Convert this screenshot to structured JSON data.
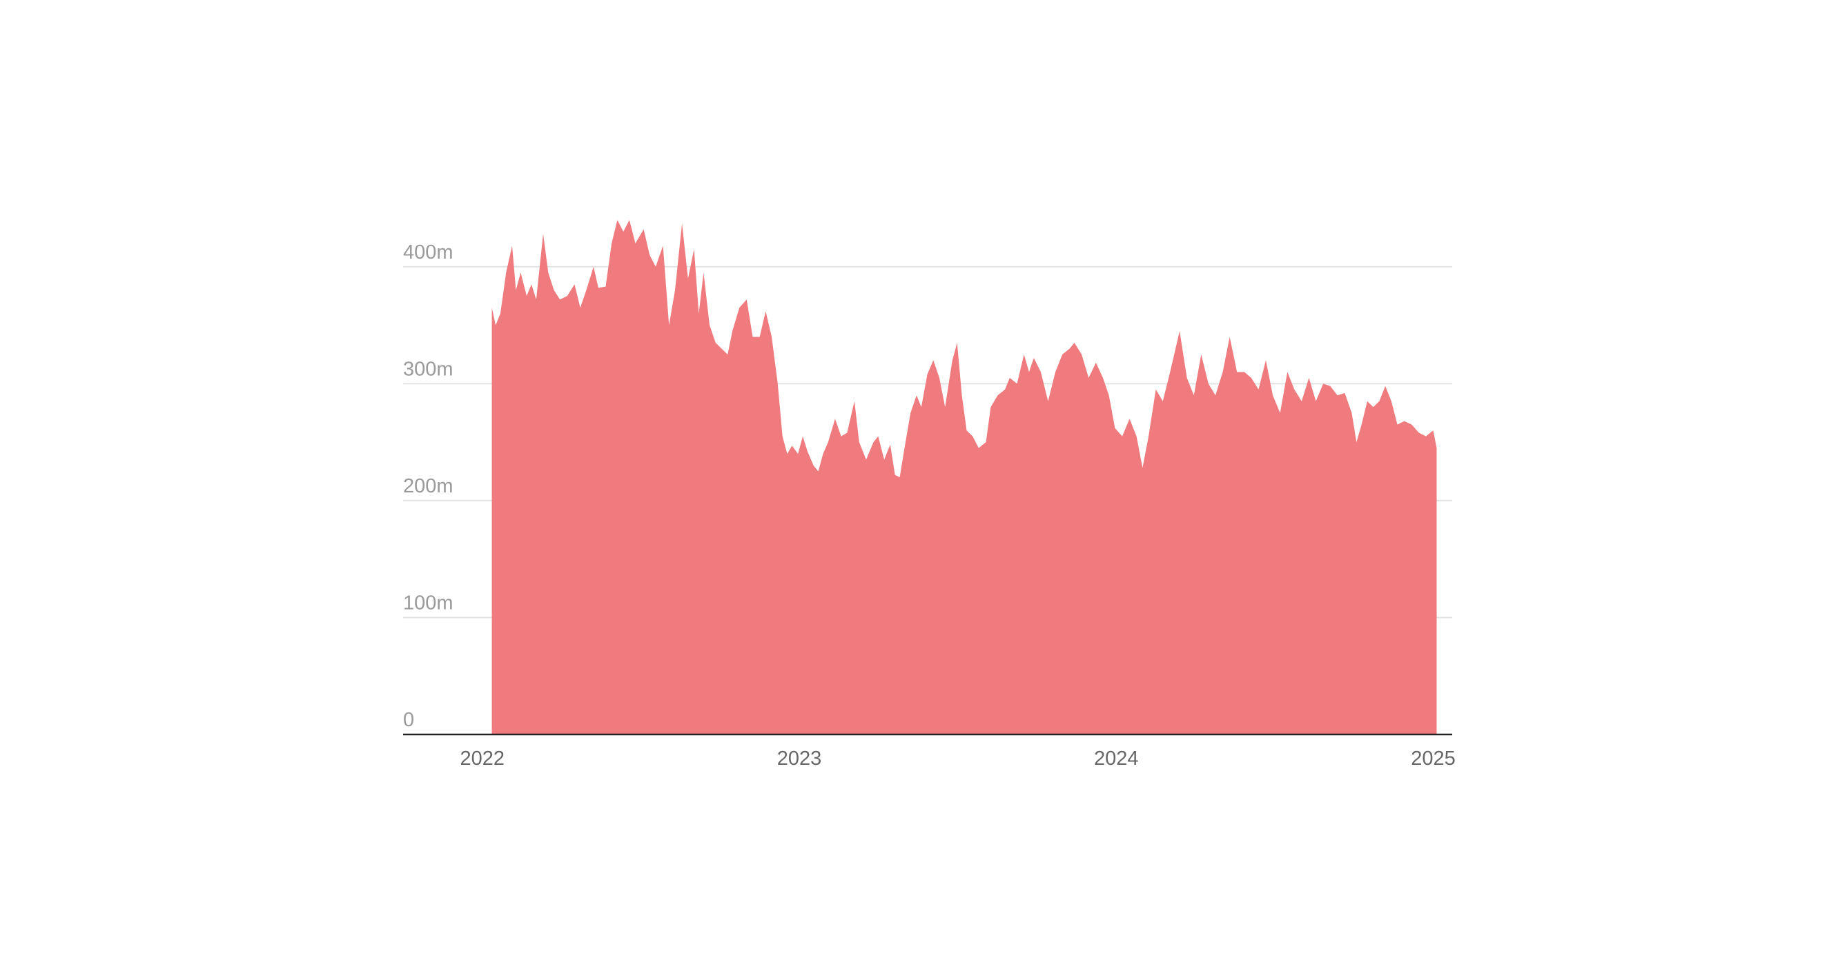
{
  "chart_data": {
    "type": "area",
    "color": "#ef7b7e",
    "grid": true,
    "xlim": [
      2021.75,
      2025.06
    ],
    "xticks": [
      2022,
      2023,
      2024,
      2025
    ],
    "ylim": [
      0,
      450
    ],
    "yticks": [
      0,
      {
        "value": 100,
        "label": "100m"
      },
      {
        "value": 200,
        "label": "200m"
      },
      {
        "value": 300,
        "label": "300m"
      },
      {
        "value": 400,
        "label": "400m"
      }
    ],
    "x": [
      2022.03,
      2022.042,
      2022.057,
      2022.075,
      2022.094,
      2022.106,
      2022.121,
      2022.14,
      2022.155,
      2022.17,
      2022.192,
      2022.208,
      2022.226,
      2022.245,
      2022.268,
      2022.291,
      2022.309,
      2022.328,
      2022.351,
      2022.366,
      2022.389,
      2022.408,
      2022.426,
      2022.445,
      2022.464,
      2022.483,
      2022.509,
      2022.528,
      2022.547,
      2022.57,
      2022.589,
      2022.608,
      2022.63,
      2022.649,
      2022.668,
      2022.683,
      2022.698,
      2022.717,
      2022.736,
      2022.755,
      2022.774,
      2022.789,
      2022.811,
      2022.834,
      2022.853,
      2022.875,
      2022.894,
      2022.913,
      2022.932,
      2022.947,
      2022.962,
      2022.977,
      2022.996,
      2023.011,
      2023.026,
      2023.045,
      2023.06,
      2023.075,
      2023.091,
      2023.113,
      2023.132,
      2023.151,
      2023.174,
      2023.189,
      2023.211,
      2023.234,
      2023.249,
      2023.268,
      2023.287,
      2023.302,
      2023.317,
      2023.332,
      2023.351,
      2023.37,
      2023.385,
      2023.404,
      2023.423,
      2023.442,
      2023.46,
      2023.483,
      2023.498,
      2023.513,
      2023.528,
      2023.547,
      2023.566,
      2023.589,
      2023.604,
      2023.626,
      2023.649,
      2023.664,
      2023.687,
      2023.709,
      2023.725,
      2023.74,
      2023.762,
      2023.785,
      2023.808,
      2023.83,
      2023.853,
      2023.868,
      2023.891,
      2023.913,
      2023.936,
      2023.958,
      2023.977,
      2023.996,
      2024.019,
      2024.042,
      2024.064,
      2024.083,
      2024.102,
      2024.125,
      2024.147,
      2024.17,
      2024.2,
      2024.223,
      2024.245,
      2024.268,
      2024.291,
      2024.313,
      2024.336,
      2024.358,
      2024.381,
      2024.404,
      2024.426,
      2024.449,
      2024.472,
      2024.494,
      2024.517,
      2024.54,
      2024.562,
      2024.585,
      2024.608,
      2024.63,
      2024.653,
      2024.675,
      2024.698,
      2024.721,
      2024.743,
      2024.758,
      2024.774,
      2024.792,
      2024.811,
      2024.83,
      2024.849,
      2024.868,
      2024.887,
      2024.909,
      2024.932,
      2024.955,
      2024.977,
      2025.0,
      2025.011
    ],
    "values": [
      365,
      350,
      360,
      395,
      418,
      380,
      395,
      375,
      385,
      372,
      428,
      395,
      380,
      372,
      375,
      385,
      365,
      380,
      400,
      382,
      383,
      420,
      440,
      430,
      440,
      420,
      432,
      410,
      400,
      418,
      350,
      380,
      437,
      390,
      415,
      360,
      395,
      350,
      335,
      330,
      325,
      345,
      365,
      372,
      340,
      340,
      362,
      340,
      300,
      255,
      240,
      247,
      240,
      255,
      242,
      230,
      225,
      240,
      250,
      270,
      255,
      258,
      285,
      250,
      235,
      250,
      255,
      235,
      248,
      222,
      220,
      245,
      275,
      290,
      280,
      308,
      320,
      305,
      280,
      320,
      335,
      290,
      260,
      255,
      245,
      250,
      280,
      290,
      295,
      305,
      300,
      325,
      310,
      322,
      310,
      285,
      310,
      325,
      330,
      335,
      325,
      305,
      318,
      305,
      290,
      262,
      255,
      270,
      255,
      228,
      255,
      295,
      285,
      310,
      345,
      305,
      290,
      325,
      300,
      290,
      310,
      340,
      310,
      310,
      305,
      295,
      320,
      290,
      275,
      310,
      295,
      285,
      305,
      285,
      300,
      298,
      290,
      292,
      275,
      250,
      265,
      285,
      280,
      285,
      298,
      285,
      265,
      268,
      265,
      258,
      255,
      260,
      245
    ]
  }
}
